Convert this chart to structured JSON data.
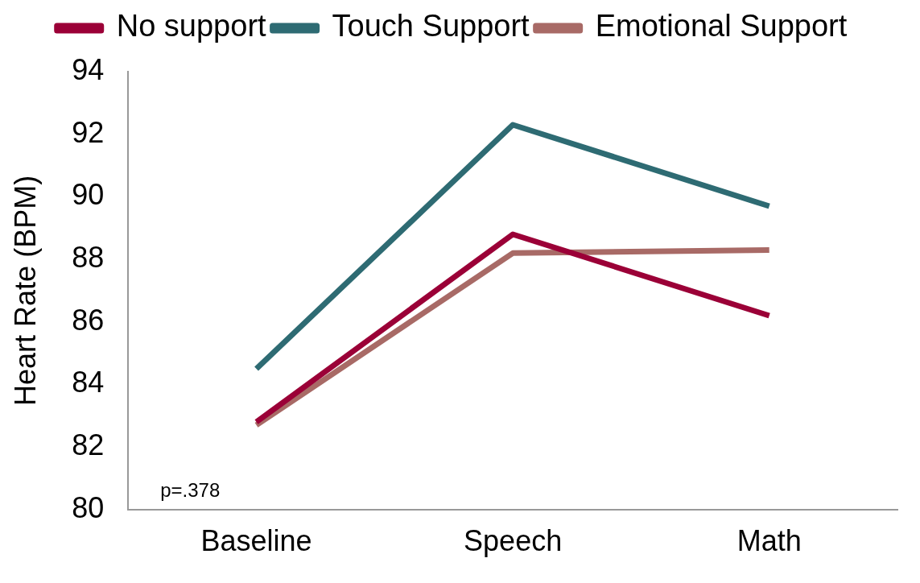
{
  "chart_data": {
    "type": "line",
    "ylabel": "Heart Rate (BPM)",
    "categories": [
      "Baseline",
      "Speech",
      "Math"
    ],
    "series": [
      {
        "name": "No support",
        "color": "#9b0037",
        "values": [
          82.8,
          88.8,
          86.2
        ]
      },
      {
        "name": "Touch Support",
        "color": "#2e6b73",
        "values": [
          84.5,
          92.3,
          89.7
        ]
      },
      {
        "name": "Emotional Support",
        "color": "#a86a66",
        "values": [
          82.7,
          88.2,
          88.3
        ]
      }
    ],
    "ylim": [
      80,
      94
    ],
    "yticks": [
      80,
      82,
      84,
      86,
      88,
      90,
      92,
      94
    ],
    "grid": false,
    "legend": "top",
    "marker": "none",
    "line_style": "solid",
    "annotations": [
      "p=.378"
    ]
  }
}
